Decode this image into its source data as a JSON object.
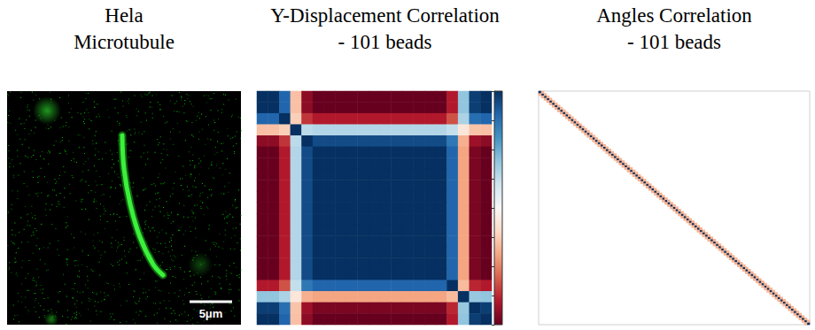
{
  "image_panel": {
    "title": "Hela Microtubule",
    "scale_bar_label": "5μm"
  },
  "chart_data": [
    {
      "type": "heatmap",
      "title": "Y-Displacement Correlation - 101 beads",
      "tick_labels": false,
      "matrix": [
        [
          1,
          1,
          0.8,
          -0.3,
          -0.9,
          -1,
          -1,
          -1,
          -1,
          -1,
          -1,
          -1,
          -1,
          -1,
          -1,
          -1,
          -1,
          -0.8,
          0.4,
          0.95,
          1
        ],
        [
          1,
          1,
          0.8,
          -0.3,
          -0.9,
          -1,
          -1,
          -1,
          -1,
          -1,
          -1,
          -1,
          -1,
          -1,
          -1,
          -1,
          -1,
          -0.8,
          0.4,
          0.95,
          1
        ],
        [
          0.8,
          0.8,
          1,
          -0.24,
          -0.72,
          -0.8,
          -0.8,
          -0.8,
          -0.8,
          -0.8,
          -0.8,
          -0.8,
          -0.8,
          -0.8,
          -0.8,
          -0.8,
          -0.8,
          -0.64,
          0.32,
          0.76,
          0.8
        ],
        [
          -0.3,
          -0.3,
          -0.24,
          1,
          0.27,
          0.3,
          0.3,
          0.3,
          0.3,
          0.3,
          0.3,
          0.3,
          0.3,
          0.3,
          0.3,
          0.3,
          0.3,
          0.24,
          -0.12,
          -0.29,
          -0.3
        ],
        [
          -0.9,
          -0.9,
          -0.72,
          0.27,
          1,
          0.9,
          0.9,
          0.9,
          0.9,
          0.9,
          0.9,
          0.9,
          0.9,
          0.9,
          0.9,
          0.9,
          0.9,
          0.72,
          -0.36,
          -0.86,
          -0.9
        ],
        [
          -1,
          -1,
          -0.8,
          0.3,
          0.9,
          1,
          1,
          1,
          1,
          1,
          1,
          1,
          1,
          1,
          1,
          1,
          1,
          0.8,
          -0.4,
          -0.95,
          -1
        ],
        [
          -1,
          -1,
          -0.8,
          0.3,
          0.9,
          1,
          1,
          1,
          1,
          1,
          1,
          1,
          1,
          1,
          1,
          1,
          1,
          0.8,
          -0.4,
          -0.95,
          -1
        ],
        [
          -1,
          -1,
          -0.8,
          0.3,
          0.9,
          1,
          1,
          1,
          1,
          1,
          1,
          1,
          1,
          1,
          1,
          1,
          1,
          0.8,
          -0.4,
          -0.95,
          -1
        ],
        [
          -1,
          -1,
          -0.8,
          0.3,
          0.9,
          1,
          1,
          1,
          1,
          1,
          1,
          1,
          1,
          1,
          1,
          1,
          1,
          0.8,
          -0.4,
          -0.95,
          -1
        ],
        [
          -1,
          -1,
          -0.8,
          0.3,
          0.9,
          1,
          1,
          1,
          1,
          1,
          1,
          1,
          1,
          1,
          1,
          1,
          1,
          0.8,
          -0.4,
          -0.95,
          -1
        ],
        [
          -1,
          -1,
          -0.8,
          0.3,
          0.9,
          1,
          1,
          1,
          1,
          1,
          1,
          1,
          1,
          1,
          1,
          1,
          1,
          0.8,
          -0.4,
          -0.95,
          -1
        ],
        [
          -1,
          -1,
          -0.8,
          0.3,
          0.9,
          1,
          1,
          1,
          1,
          1,
          1,
          1,
          1,
          1,
          1,
          1,
          1,
          0.8,
          -0.4,
          -0.95,
          -1
        ],
        [
          -1,
          -1,
          -0.8,
          0.3,
          0.9,
          1,
          1,
          1,
          1,
          1,
          1,
          1,
          1,
          1,
          1,
          1,
          1,
          0.8,
          -0.4,
          -0.95,
          -1
        ],
        [
          -1,
          -1,
          -0.8,
          0.3,
          0.9,
          1,
          1,
          1,
          1,
          1,
          1,
          1,
          1,
          1,
          1,
          1,
          1,
          0.8,
          -0.4,
          -0.95,
          -1
        ],
        [
          -1,
          -1,
          -0.8,
          0.3,
          0.9,
          1,
          1,
          1,
          1,
          1,
          1,
          1,
          1,
          1,
          1,
          1,
          1,
          0.8,
          -0.4,
          -0.95,
          -1
        ],
        [
          -1,
          -1,
          -0.8,
          0.3,
          0.9,
          1,
          1,
          1,
          1,
          1,
          1,
          1,
          1,
          1,
          1,
          1,
          1,
          0.8,
          -0.4,
          -0.95,
          -1
        ],
        [
          -1,
          -1,
          -0.8,
          0.3,
          0.9,
          1,
          1,
          1,
          1,
          1,
          1,
          1,
          1,
          1,
          1,
          1,
          1,
          0.8,
          -0.4,
          -0.95,
          -1
        ],
        [
          -0.8,
          -0.8,
          -0.64,
          0.24,
          0.72,
          0.8,
          0.8,
          0.8,
          0.8,
          0.8,
          0.8,
          0.8,
          0.8,
          0.8,
          0.8,
          0.8,
          0.8,
          1,
          -0.32,
          -0.76,
          -0.8
        ],
        [
          0.4,
          0.4,
          0.32,
          -0.12,
          -0.36,
          -0.4,
          -0.4,
          -0.4,
          -0.4,
          -0.4,
          -0.4,
          -0.4,
          -0.4,
          -0.4,
          -0.4,
          -0.4,
          -0.4,
          -0.32,
          1,
          0.38,
          0.4
        ],
        [
          0.95,
          0.95,
          0.76,
          -0.29,
          -0.86,
          -0.95,
          -0.95,
          -0.95,
          -0.95,
          -0.95,
          -0.95,
          -0.95,
          -0.95,
          -0.95,
          -0.95,
          -0.95,
          -0.95,
          -0.76,
          0.38,
          1,
          0.95
        ],
        [
          1,
          1,
          0.8,
          -0.3,
          -0.9,
          -1,
          -1,
          -1,
          -1,
          -1,
          -1,
          -1,
          -1,
          -1,
          -1,
          -1,
          -1,
          -0.8,
          0.4,
          0.95,
          1
        ]
      ],
      "colorbar": {
        "range": [
          -1,
          1
        ],
        "ticks": [
          -1,
          -0.75,
          -0.5,
          -0.25,
          0,
          0.25,
          0.5,
          0.75,
          1
        ],
        "tick_labels": false
      }
    },
    {
      "type": "heatmap",
      "title": "Angles Correlation - 101 beads",
      "tick_labels": false,
      "color_range": [
        -1,
        1
      ],
      "diagonal": [
        1,
        1,
        1,
        1,
        1,
        1,
        1,
        1,
        1,
        1,
        1,
        1,
        1,
        1,
        1,
        1,
        1,
        1,
        1,
        1,
        1,
        1,
        1,
        1,
        1,
        1,
        1,
        1,
        1,
        1,
        1,
        1,
        1,
        1,
        1,
        1,
        1,
        1,
        1,
        1,
        1,
        1,
        1,
        1,
        1,
        1,
        1,
        1,
        1,
        1,
        1,
        1,
        1,
        1,
        1,
        1,
        1,
        1,
        1,
        1,
        1,
        1,
        1,
        1,
        1,
        1,
        1,
        1,
        1,
        1,
        1,
        1,
        1,
        1,
        1,
        1,
        1,
        1,
        1,
        1,
        1,
        1,
        1,
        1,
        1,
        1,
        1,
        1,
        1,
        1,
        1,
        1,
        1,
        1,
        1,
        1,
        1,
        1,
        1,
        1,
        1
      ],
      "off_diagonal": [
        -0.35,
        -0.35,
        -0.35,
        -0.35,
        -0.35,
        -0.35,
        -0.35,
        -0.35,
        -0.35,
        -0.35,
        -0.35,
        -0.35,
        -0.35,
        -0.35,
        -0.35,
        -0.35,
        -0.35,
        -0.35,
        -0.35,
        -0.35,
        -0.35,
        -0.35,
        -0.35,
        -0.35,
        -0.35,
        -0.35,
        -0.35,
        -0.35,
        -0.35,
        -0.35,
        -0.35,
        -0.35,
        -0.35,
        -0.35,
        -0.35,
        -0.35,
        -0.35,
        -0.35,
        -0.35,
        -0.35,
        -0.35,
        -0.35,
        -0.35,
        -0.35,
        -0.35,
        -0.35,
        -0.35,
        -0.35,
        -0.35,
        -0.35,
        -0.35,
        -0.35,
        -0.35,
        -0.35,
        -0.35,
        -0.35,
        -0.35,
        -0.35,
        -0.35,
        -0.35,
        -0.35,
        -0.35,
        -0.35,
        -0.35,
        -0.35,
        -0.35,
        -0.35,
        -0.35,
        -0.35,
        -0.35,
        -0.35,
        -0.35,
        -0.35,
        -0.35,
        -0.35,
        -0.35,
        -0.35,
        -0.35,
        -0.35,
        -0.35,
        -0.35,
        -0.35,
        -0.35,
        -0.35,
        -0.35,
        -0.35,
        -0.35,
        -0.35,
        -0.35,
        -0.35,
        -0.35,
        -0.35,
        -0.35,
        -0.35,
        -0.35,
        -0.35,
        -0.35,
        -0.35,
        -0.35,
        -0.35
      ]
    }
  ]
}
